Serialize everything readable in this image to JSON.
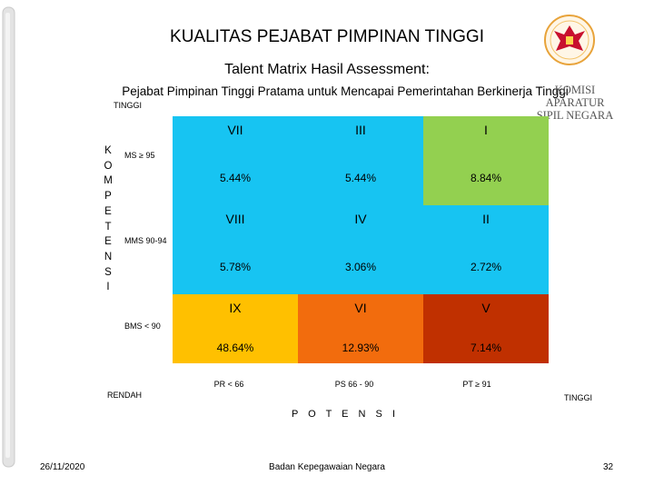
{
  "header": {
    "title": "KUALITAS PEJABAT PIMPINAN TINGGI",
    "subtitle": "Talent Matrix Hasil Assessment:",
    "subtitle2": "Pejabat Pimpinan Tinggi Pratama untuk Mencapai Pemerintahan Berkinerja Tinggi"
  },
  "logo": {
    "line1": "KOMISI APARATUR",
    "line2": "SIPIL NEGARA"
  },
  "y_axis": {
    "top_label": "TINGGI",
    "title_letters": [
      "K",
      "O",
      "M",
      "P",
      "E",
      "T",
      "E",
      "N",
      "S",
      "I"
    ],
    "rows": [
      "MS ≥ 95",
      "MMS 90-94",
      "BMS < 90"
    ],
    "bottom_label": "RENDAH"
  },
  "x_axis": {
    "columns": [
      "PR < 66",
      "PS 66 - 90",
      "PT ≥ 91"
    ],
    "right_label": "TINGGI",
    "title": "P O T E N S I"
  },
  "grid": {
    "rows": [
      [
        {
          "code": "VII",
          "pct": "5.44%",
          "color": "#17c4f2"
        },
        {
          "code": "III",
          "pct": "5.44%",
          "color": "#17c4f2"
        },
        {
          "code": "I",
          "pct": "8.84%",
          "color": "#93d050"
        }
      ],
      [
        {
          "code": "VIII",
          "pct": "5.78%",
          "color": "#17c4f2"
        },
        {
          "code": "IV",
          "pct": "3.06%",
          "color": "#17c4f2"
        },
        {
          "code": "II",
          "pct": "2.72%",
          "color": "#17c4f2"
        }
      ],
      [
        {
          "code": "IX",
          "pct": "48.64%",
          "color": "#ffc000"
        },
        {
          "code": "VI",
          "pct": "12.93%",
          "color": "#f26c0d"
        },
        {
          "code": "V",
          "pct": "7.14%",
          "color": "#c03000"
        }
      ]
    ]
  },
  "footer": {
    "date": "26/11/2020",
    "org": "Badan Kepegawaian Negara",
    "page": "32"
  }
}
